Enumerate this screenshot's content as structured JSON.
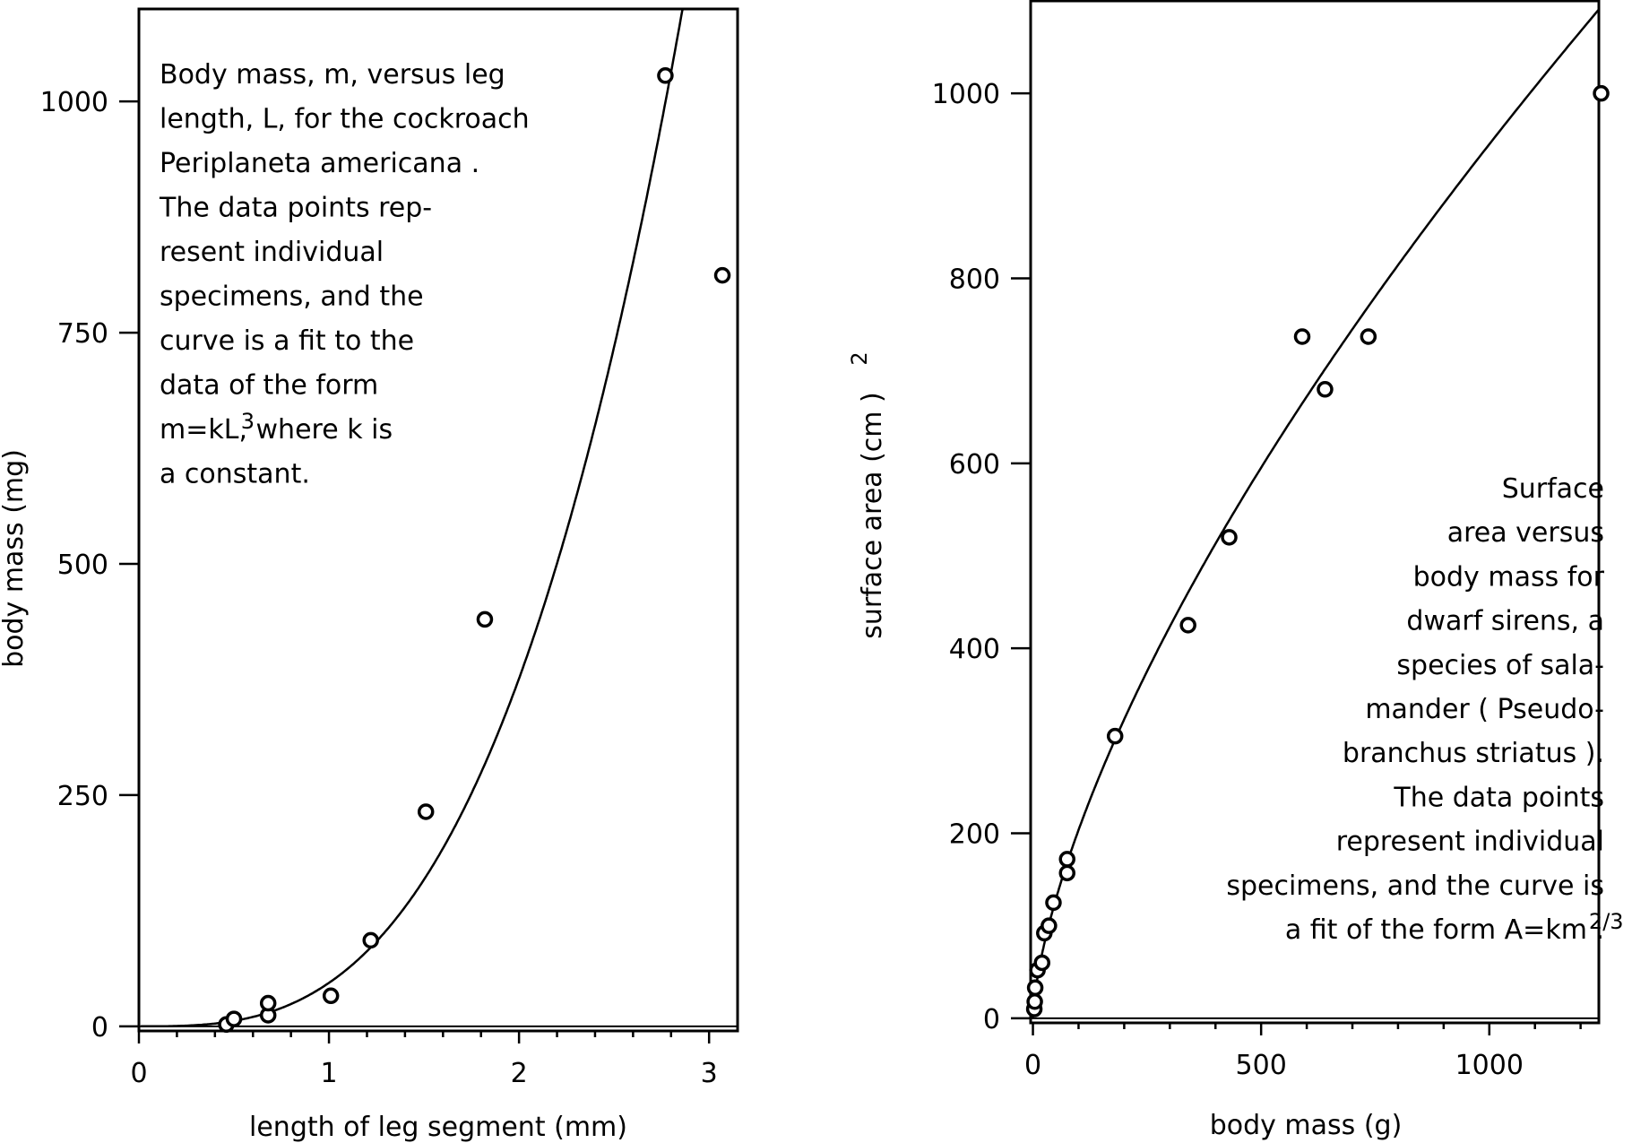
{
  "chart_data": [
    {
      "type": "scatter",
      "title": "",
      "xlabel": "length of leg segment (mm)",
      "ylabel": "body mass (mg)",
      "xlim": [
        0,
        3.15
      ],
      "ylim": [
        -5,
        1100
      ],
      "xticks": [
        0,
        1,
        2,
        3
      ],
      "xtick_labels": [
        "0",
        "1",
        "2",
        "3"
      ],
      "yticks": [
        0,
        250,
        500,
        750,
        1000
      ],
      "ytick_labels": [
        "0",
        "250",
        "500",
        "750",
        "1000"
      ],
      "grid": false,
      "fit": {
        "form": "cubic",
        "k": 47
      },
      "series": [
        {
          "points": [
            {
              "x": 0.46,
              "y": 2
            },
            {
              "x": 0.5,
              "y": 8
            },
            {
              "x": 0.68,
              "y": 12
            },
            {
              "x": 0.68,
              "y": 25
            },
            {
              "x": 1.01,
              "y": 33
            },
            {
              "x": 1.22,
              "y": 93
            },
            {
              "x": 1.51,
              "y": 232
            },
            {
              "x": 1.82,
              "y": 440
            },
            {
              "x": 2.77,
              "y": 1028
            },
            {
              "x": 3.07,
              "y": 812
            }
          ]
        }
      ],
      "annotation": {
        "lines": [
          "Body mass, m, versus leg",
          "length, L, for the cockroach",
          "Periplaneta americana  .",
          "The data points rep-",
          "resent individual",
          "specimens, and the",
          "curve is a fit to the",
          "data of the form",
          "m=kL, where k is",
          "a constant."
        ],
        "superscript": "3",
        "superscript_line": 8,
        "superscript_after": "m=kL"
      }
    },
    {
      "type": "scatter",
      "title": "",
      "xlabel": "body mass (g)",
      "ylabel": "surface area (cm  )",
      "ylabel_superscript": "2",
      "xlim": [
        -5,
        1240
      ],
      "ylim": [
        -5,
        1100
      ],
      "xticks": [
        0,
        500,
        1000
      ],
      "xtick_labels": [
        "0",
        "500",
        "1000"
      ],
      "yticks": [
        0,
        200,
        400,
        600,
        800,
        1000
      ],
      "ytick_labels": [
        "0",
        "200",
        "400",
        "600",
        "800",
        "1000"
      ],
      "grid": false,
      "fit": {
        "form": "two-thirds power",
        "k": 9.45
      },
      "series": [
        {
          "points": [
            {
              "x": 3,
              "y": 10
            },
            {
              "x": 4,
              "y": 18
            },
            {
              "x": 5,
              "y": 33
            },
            {
              "x": 10,
              "y": 52
            },
            {
              "x": 20,
              "y": 60
            },
            {
              "x": 25,
              "y": 92
            },
            {
              "x": 35,
              "y": 100
            },
            {
              "x": 45,
              "y": 125
            },
            {
              "x": 75,
              "y": 157
            },
            {
              "x": 75,
              "y": 172
            },
            {
              "x": 180,
              "y": 305
            },
            {
              "x": 340,
              "y": 425
            },
            {
              "x": 430,
              "y": 520
            },
            {
              "x": 590,
              "y": 737
            },
            {
              "x": 640,
              "y": 680
            },
            {
              "x": 735,
              "y": 737
            },
            {
              "x": 1245,
              "y": 1000
            }
          ]
        }
      ],
      "annotation": {
        "lines": [
          "Surface",
          "area versus",
          "body mass for",
          "dwarf sirens, a",
          "species of sala-",
          "mander ( Pseudo-",
          "branchus striatus  ).",
          "The data points",
          "represent individual",
          "specimens, and the curve is",
          "a fit of the form A=km    ."
        ],
        "superscript": "2/3",
        "superscript_line": 10,
        "superscript_after": "a fit of the form A=km"
      }
    }
  ]
}
